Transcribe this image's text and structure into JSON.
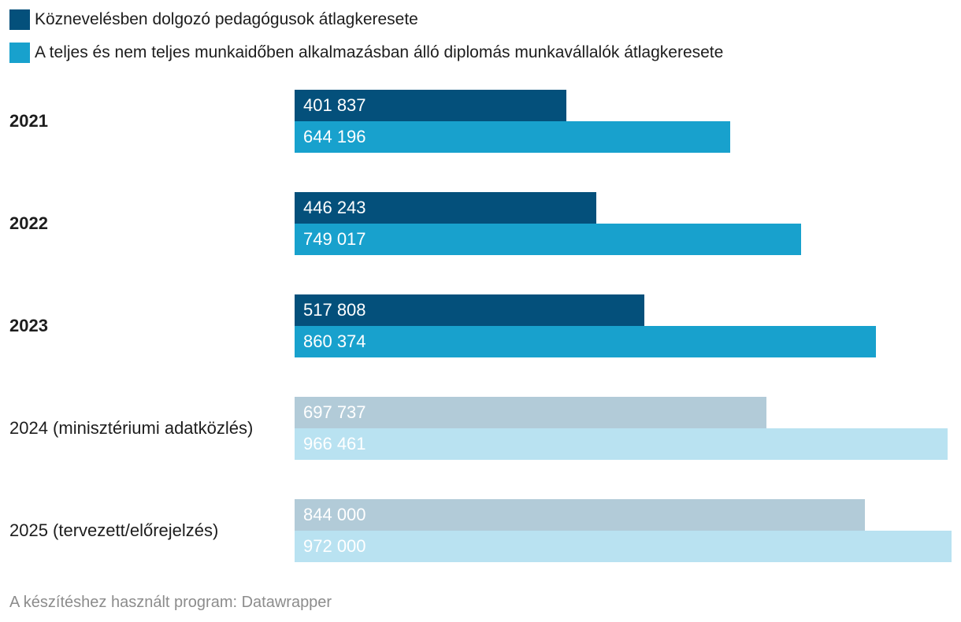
{
  "legend": [
    {
      "label": "Köznevelésben dolgozó pedagógusok átlagkeresete",
      "color": "#04507b"
    },
    {
      "label": "A teljes és nem teljes munkaidőben alkalmazásban álló diplomás munkavállalók átlagkeresete",
      "color": "#18a1cd"
    }
  ],
  "chart_data": {
    "type": "bar",
    "orientation": "horizontal",
    "categories": [
      "2021",
      "2022",
      "2023",
      "2024 (minisztériumi adatközlés)",
      "2025 (tervezett/előrejelzés)"
    ],
    "category_bold": [
      true,
      true,
      true,
      false,
      false
    ],
    "series": [
      {
        "name": "Köznevelésben dolgozó pedagógusok átlagkeresete",
        "values": [
          401837,
          446243,
          517808,
          697737,
          844000
        ],
        "value_labels": [
          "401 837",
          "446 243",
          "517 808",
          "697 737",
          "844 000"
        ],
        "colors": [
          "#04507b",
          "#04507b",
          "#04507b",
          "#b2cbd8",
          "#b2cbd8"
        ]
      },
      {
        "name": "A teljes és nem teljes munkaidőben alkalmazásban álló diplomás munkavállalók átlagkeresete",
        "values": [
          644196,
          749017,
          860374,
          966461,
          972000
        ],
        "value_labels": [
          "644 196",
          "749 017",
          "860 374",
          "966 461",
          "972 000"
        ],
        "colors": [
          "#18a1cd",
          "#18a1cd",
          "#18a1cd",
          "#b9e2f1",
          "#b9e2f1"
        ]
      }
    ],
    "xlim": [
      0,
      972000
    ],
    "grid": false
  },
  "footer": "A készítéshez használt program: Datawrapper"
}
